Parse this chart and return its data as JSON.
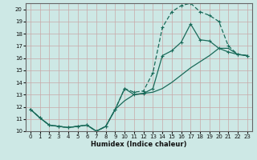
{
  "title": "",
  "xlabel": "Humidex (Indice chaleur)",
  "bg_color": "#cde8e5",
  "grid_color": "#b8d8d4",
  "line_color": "#1a6b5a",
  "xlim": [
    -0.5,
    23.5
  ],
  "ylim": [
    10,
    20.5
  ],
  "yticks": [
    10,
    11,
    12,
    13,
    14,
    15,
    16,
    17,
    18,
    19,
    20
  ],
  "xticks": [
    0,
    1,
    2,
    3,
    4,
    5,
    6,
    7,
    8,
    9,
    10,
    11,
    12,
    13,
    14,
    15,
    16,
    17,
    18,
    19,
    20,
    21,
    22,
    23
  ],
  "line1_x": [
    0,
    1,
    2,
    3,
    4,
    5,
    6,
    7,
    8,
    9,
    10,
    11,
    12,
    13,
    14,
    15,
    16,
    17,
    18,
    19,
    20,
    21,
    22,
    23
  ],
  "line1_y": [
    11.8,
    11.1,
    10.5,
    10.4,
    10.3,
    10.4,
    10.5,
    10.0,
    10.4,
    11.8,
    13.5,
    13.0,
    13.1,
    13.5,
    16.2,
    16.6,
    17.3,
    18.8,
    17.5,
    17.4,
    16.8,
    16.5,
    16.3,
    16.2
  ],
  "line2_x": [
    0,
    1,
    2,
    3,
    4,
    5,
    6,
    7,
    8,
    9,
    10,
    11,
    12,
    13,
    14,
    15,
    16,
    17,
    18,
    19,
    20,
    21,
    22,
    23
  ],
  "line2_y": [
    11.8,
    11.1,
    10.5,
    10.4,
    10.3,
    10.4,
    10.5,
    10.0,
    10.4,
    11.8,
    13.5,
    13.2,
    13.3,
    14.8,
    18.5,
    19.8,
    20.3,
    20.5,
    19.8,
    19.5,
    19.0,
    17.0,
    16.3,
    16.2
  ],
  "line3_x": [
    0,
    1,
    2,
    3,
    4,
    5,
    6,
    7,
    8,
    9,
    10,
    11,
    12,
    13,
    14,
    15,
    16,
    17,
    18,
    19,
    20,
    21,
    22,
    23
  ],
  "line3_y": [
    11.8,
    11.1,
    10.5,
    10.4,
    10.3,
    10.4,
    10.5,
    10.0,
    10.4,
    11.8,
    12.5,
    13.0,
    13.1,
    13.2,
    13.5,
    14.0,
    14.6,
    15.2,
    15.7,
    16.2,
    16.8,
    16.8,
    16.3,
    16.2
  ]
}
